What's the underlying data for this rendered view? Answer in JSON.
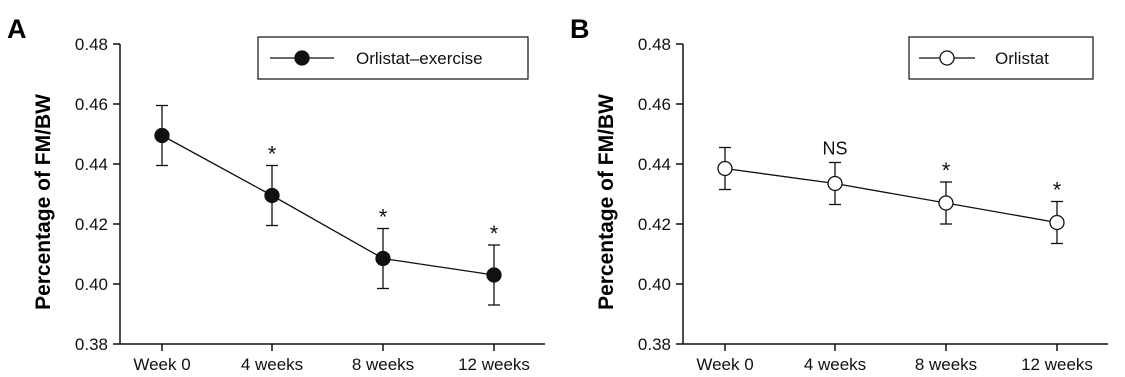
{
  "chart_data": [
    {
      "type": "line",
      "panel_label": "A",
      "ylabel": "Percentage of FM/BW",
      "xlabel": "",
      "categories": [
        "Week 0",
        "4 weeks",
        "8 weeks",
        "12 weeks"
      ],
      "ylim": [
        0.38,
        0.48
      ],
      "yticks": [
        "0.38",
        "0.40",
        "0.42",
        "0.44",
        "0.46",
        "0.48"
      ],
      "series": [
        {
          "name": "Orlistat–exercise",
          "marker": "filled-circle",
          "values": [
            0.4495,
            0.4295,
            0.4085,
            0.403
          ],
          "error": [
            0.01,
            0.01,
            0.01,
            0.01
          ],
          "annotations": [
            "",
            "*",
            "*",
            "*"
          ]
        }
      ],
      "legend_position": "top-right",
      "grid": false
    },
    {
      "type": "line",
      "panel_label": "B",
      "ylabel": "Percentage of FM/BW",
      "xlabel": "",
      "categories": [
        "Week 0",
        "4 weeks",
        "8 weeks",
        "12 weeks"
      ],
      "ylim": [
        0.38,
        0.48
      ],
      "yticks": [
        "0.38",
        "0.40",
        "0.42",
        "0.44",
        "0.46",
        "0.48"
      ],
      "series": [
        {
          "name": "Orlistat",
          "marker": "open-circle",
          "values": [
            0.4385,
            0.4335,
            0.427,
            0.4205
          ],
          "error": [
            0.007,
            0.007,
            0.007,
            0.007
          ],
          "annotations": [
            "",
            "NS",
            "*",
            "*"
          ]
        }
      ],
      "legend_position": "top-right",
      "grid": false
    }
  ]
}
